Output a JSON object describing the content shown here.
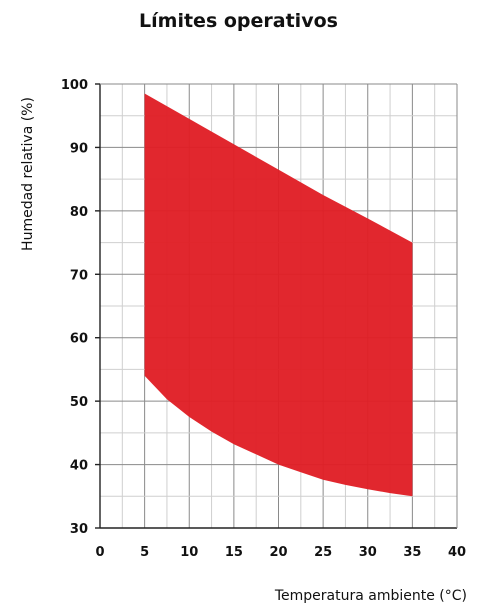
{
  "chart_data": {
    "type": "area",
    "title": "Límites operativos",
    "xlabel": "Temperatura ambiente (°C)",
    "ylabel": "Humedad relativa (%)",
    "xlim": [
      0,
      40
    ],
    "ylim": [
      30,
      100
    ],
    "x_ticks": [
      0,
      5,
      10,
      15,
      20,
      25,
      30,
      35,
      40
    ],
    "y_ticks": [
      30,
      40,
      50,
      60,
      70,
      80,
      90,
      100
    ],
    "grid": true,
    "fill_color": "#e01e25",
    "region": {
      "upper": [
        [
          5,
          98.5
        ],
        [
          10,
          94.5
        ],
        [
          15,
          90.5
        ],
        [
          20,
          86.5
        ],
        [
          25,
          82.5
        ],
        [
          30,
          78.8
        ],
        [
          35,
          75
        ]
      ],
      "lower": [
        [
          5,
          54
        ],
        [
          7.5,
          50.3
        ],
        [
          10,
          47.5
        ],
        [
          12.5,
          45.2
        ],
        [
          15,
          43.2
        ],
        [
          17.5,
          41.6
        ],
        [
          20,
          40
        ],
        [
          22.5,
          38.8
        ],
        [
          25,
          37.6
        ],
        [
          27.5,
          36.8
        ],
        [
          30,
          36.1
        ],
        [
          32.5,
          35.5
        ],
        [
          35,
          35
        ]
      ]
    }
  }
}
